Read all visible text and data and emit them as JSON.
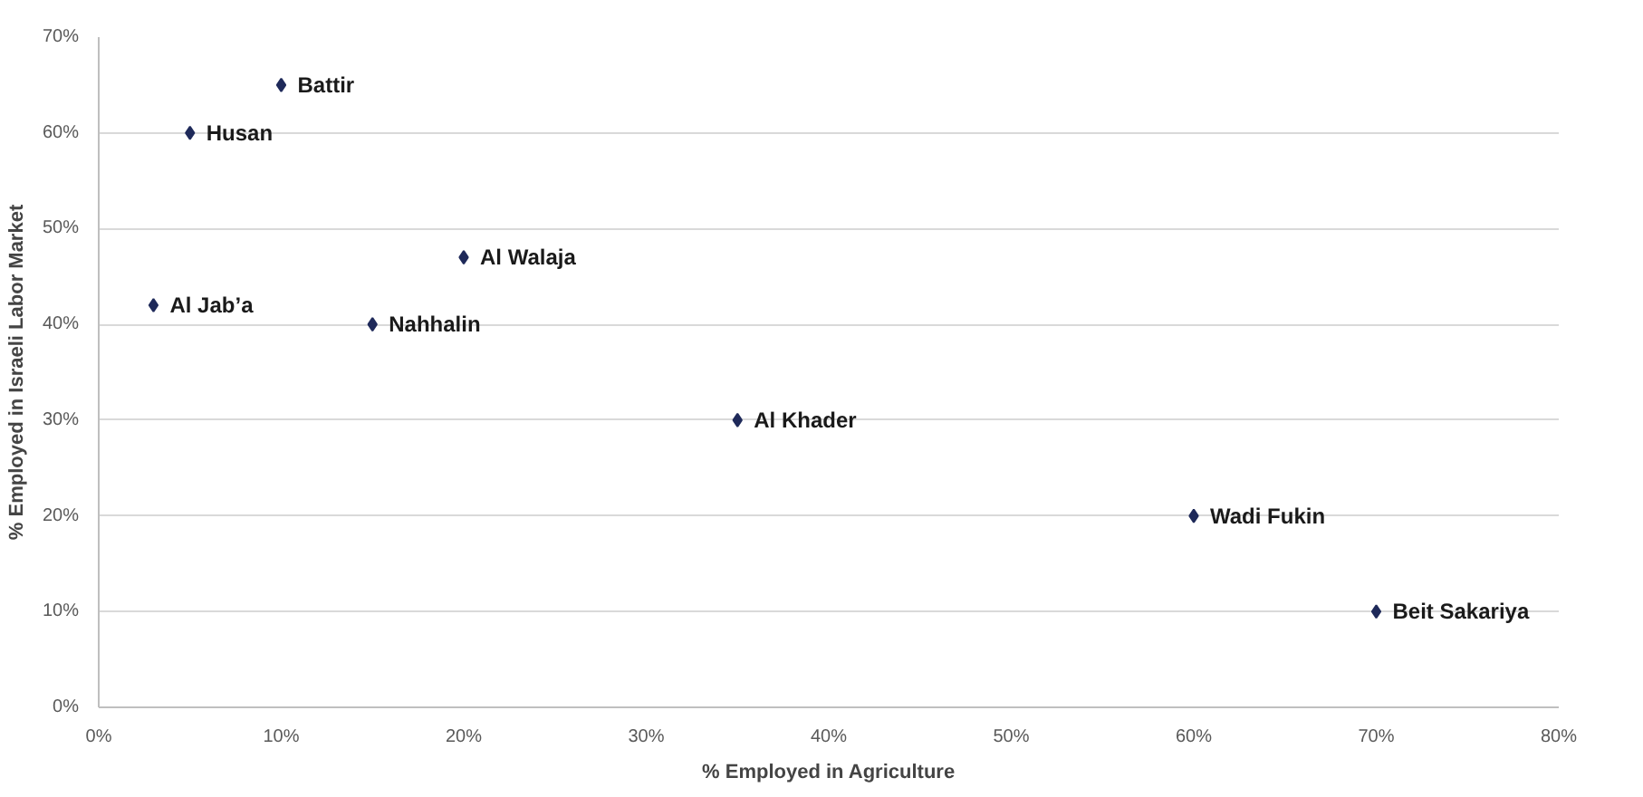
{
  "chart_data": {
    "type": "scatter",
    "xlabel": "% Employed in Agriculture",
    "ylabel": "% Employed in Israeli Labor Market",
    "x": [
      10,
      5,
      20,
      3,
      15,
      35,
      60,
      70
    ],
    "series": [
      {
        "color": "#1f2a5a",
        "values": [
          65,
          60,
          47,
          42,
          40,
          30,
          20,
          10
        ]
      }
    ],
    "marker": "diamond",
    "grid": "y",
    "xlim": [
      0,
      80
    ],
    "xticks": [
      {
        "value": 0,
        "label": "0%"
      },
      {
        "value": 10,
        "label": "10%"
      },
      {
        "value": 20,
        "label": "20%"
      },
      {
        "value": 30,
        "label": "30%"
      },
      {
        "value": 40,
        "label": "40%"
      },
      {
        "value": 50,
        "label": "50%"
      },
      {
        "value": 60,
        "label": "60%"
      },
      {
        "value": 70,
        "label": "70%"
      },
      {
        "value": 80,
        "label": "80%"
      }
    ],
    "ylim": [
      0,
      70
    ],
    "yticks": [
      {
        "value": 0,
        "label": "0%"
      },
      {
        "value": 10,
        "label": "10%"
      },
      {
        "value": 20,
        "label": "20%"
      },
      {
        "value": 30,
        "label": "30%"
      },
      {
        "value": 40,
        "label": "40%"
      },
      {
        "value": 50,
        "label": "50%"
      },
      {
        "value": 60,
        "label": "60%"
      },
      {
        "value": 70,
        "label": "70%"
      }
    ],
    "annotations": [
      {
        "text": "Battir",
        "x": 10,
        "y": 65
      },
      {
        "text": "Husan",
        "x": 5,
        "y": 60
      },
      {
        "text": "Al Walaja",
        "x": 20,
        "y": 47
      },
      {
        "text": "Al Jab’a",
        "x": 3,
        "y": 42
      },
      {
        "text": "Nahhalin",
        "x": 15,
        "y": 40
      },
      {
        "text": "Al Khader",
        "x": 35,
        "y": 30
      },
      {
        "text": "Wadi Fukin",
        "x": 60,
        "y": 20
      },
      {
        "text": "Beit Sakariya",
        "x": 70,
        "y": 10
      }
    ]
  }
}
